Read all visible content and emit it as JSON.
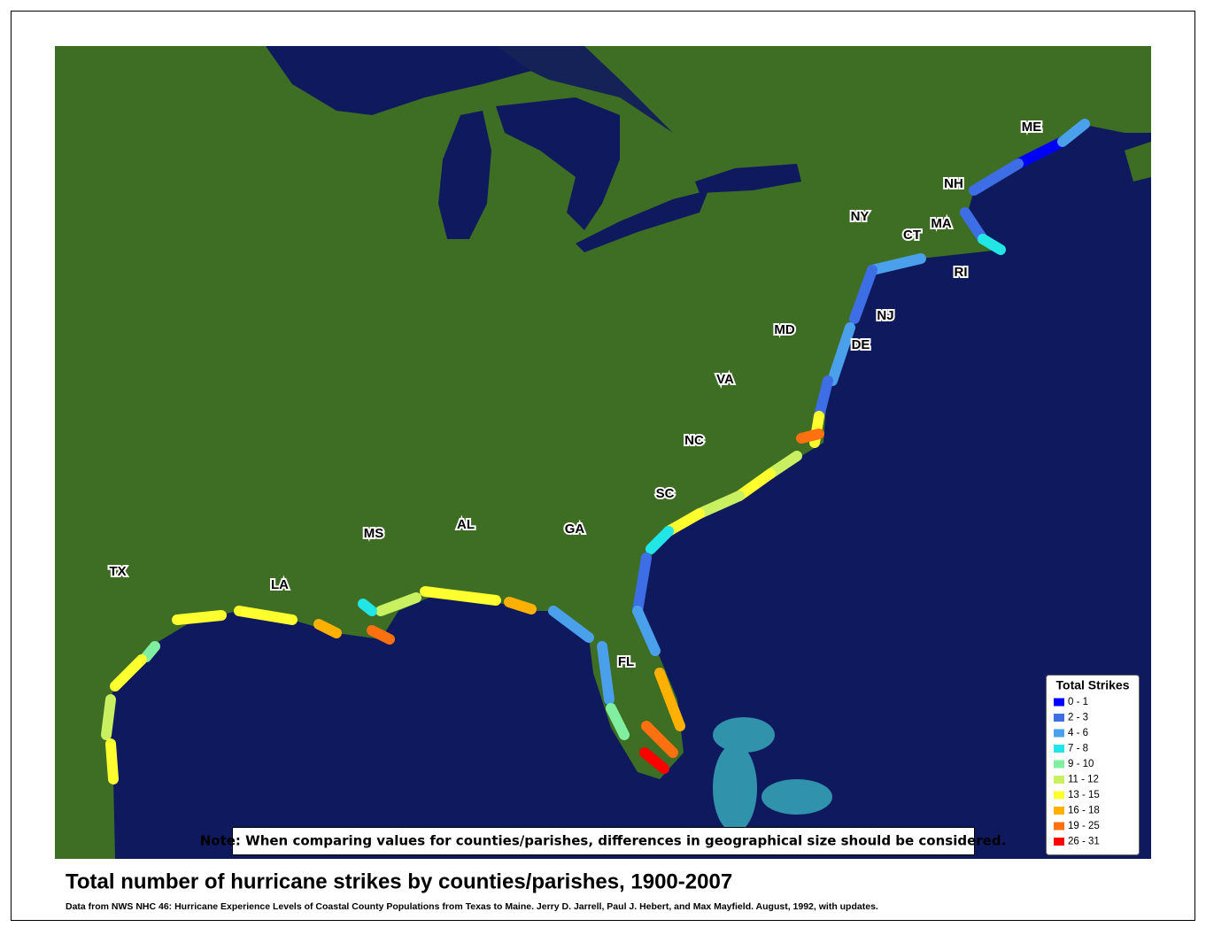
{
  "title": "Total number of hurricane strikes by counties/parishes, 1900-2007",
  "source": "Data from NWS NHC 46: Hurricane Experience Levels of Coastal County Populations from Texas to Maine. Jerry D. Jarrell, Paul J. Hebert, and Max Mayfield. August, 1992, with updates.",
  "note": "Note: When comparing values for counties/parishes, differences in geographical size should be considered.",
  "legend": {
    "title": "Total Strikes",
    "items": [
      {
        "label": "0 - 1",
        "color": "#0000ff"
      },
      {
        "label": "2 - 3",
        "color": "#3e6ee6"
      },
      {
        "label": "4 - 6",
        "color": "#4aa0ea"
      },
      {
        "label": "7 - 8",
        "color": "#22e6e6"
      },
      {
        "label": "9 - 10",
        "color": "#80f0a0"
      },
      {
        "label": "11 - 12",
        "color": "#c8f060"
      },
      {
        "label": "13 - 15",
        "color": "#ffff30"
      },
      {
        "label": "16 - 18",
        "color": "#ffb000"
      },
      {
        "label": "19 - 25",
        "color": "#ff7010"
      },
      {
        "label": "26 - 31",
        "color": "#ff0000"
      }
    ]
  },
  "states": [
    "ME",
    "NH",
    "NY",
    "MA",
    "CT",
    "RI",
    "NJ",
    "MD",
    "DE",
    "VA",
    "NC",
    "SC",
    "GA",
    "AL",
    "MS",
    "LA",
    "TX",
    "FL"
  ]
}
